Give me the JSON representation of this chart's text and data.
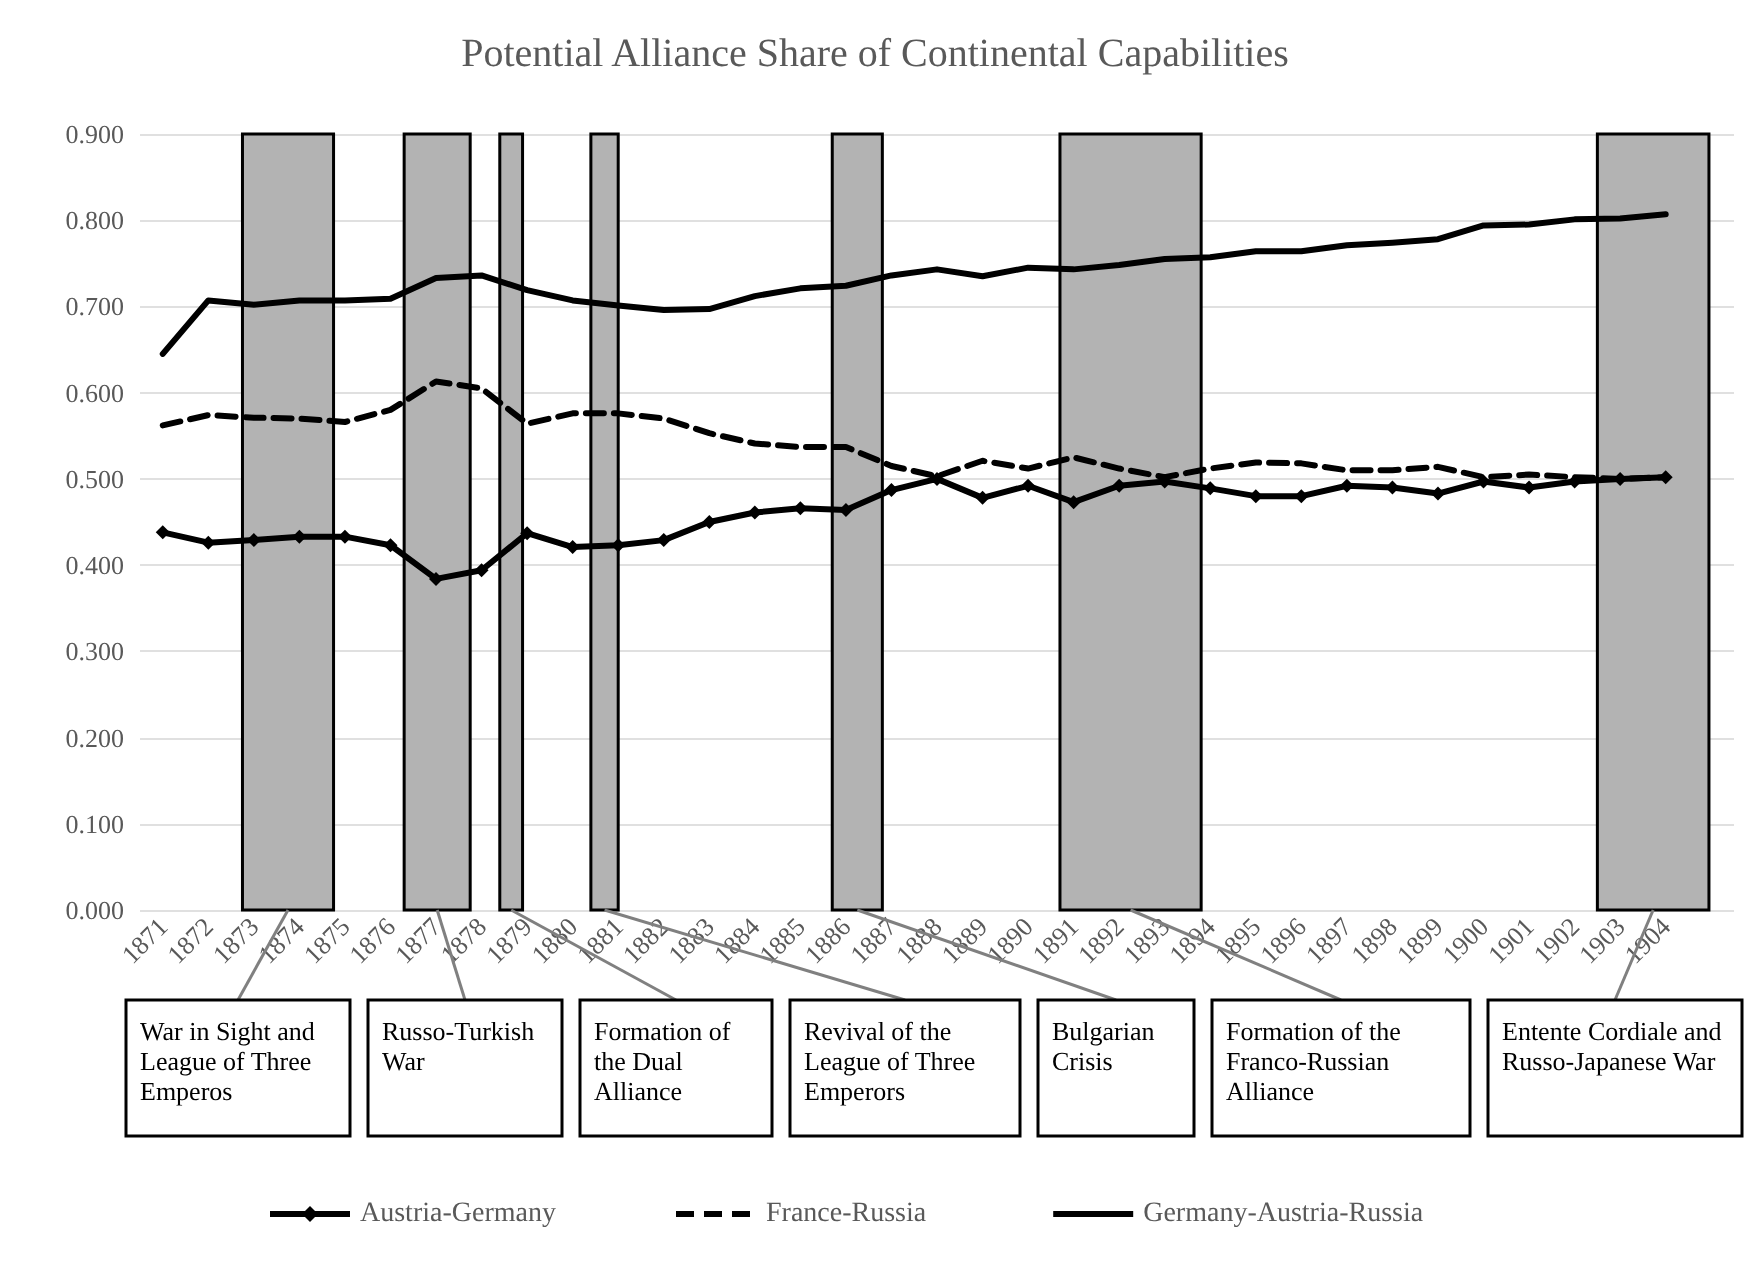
{
  "chart_data": {
    "type": "line",
    "title": "Potential Alliance Share of Continental Capabilities",
    "x": [
      1871,
      1872,
      1873,
      1874,
      1875,
      1876,
      1877,
      1878,
      1879,
      1880,
      1881,
      1882,
      1883,
      1884,
      1885,
      1886,
      1887,
      1888,
      1889,
      1890,
      1891,
      1892,
      1893,
      1894,
      1895,
      1896,
      1897,
      1898,
      1899,
      1900,
      1901,
      1902,
      1903,
      1904
    ],
    "series": [
      {
        "name": "Austria-Germany",
        "color": "#000000",
        "marker": "diamond",
        "line_style": "solid",
        "values": [
          0.438,
          0.426,
          0.429,
          0.433,
          0.433,
          0.423,
          0.384,
          0.394,
          0.437,
          0.421,
          0.423,
          0.429,
          0.45,
          0.461,
          0.466,
          0.464,
          0.487,
          0.5,
          0.478,
          0.492,
          0.473,
          0.492,
          0.497,
          0.489,
          0.48,
          0.48,
          0.492,
          0.49,
          0.483,
          0.497,
          0.49,
          0.497,
          0.5,
          0.502
        ]
      },
      {
        "name": "France-Russia",
        "color": "#000000",
        "marker": "none",
        "line_style": "dashed",
        "values": [
          0.562,
          0.574,
          0.571,
          0.57,
          0.566,
          0.58,
          0.613,
          0.605,
          0.564,
          0.576,
          0.576,
          0.57,
          0.553,
          0.541,
          0.537,
          0.537,
          0.515,
          0.503,
          0.521,
          0.512,
          0.525,
          0.512,
          0.502,
          0.512,
          0.519,
          0.518,
          0.51,
          0.51,
          0.514,
          0.502,
          0.505,
          0.502,
          0.5,
          0.502
        ]
      },
      {
        "name": "Germany-Austria-Russia",
        "color": "#000000",
        "marker": "none",
        "line_style": "solid",
        "values": [
          0.645,
          0.707,
          0.702,
          0.707,
          0.707,
          0.709,
          0.733,
          0.736,
          0.719,
          0.707,
          0.701,
          0.696,
          0.697,
          0.712,
          0.721,
          0.724,
          0.736,
          0.743,
          0.735,
          0.745,
          0.743,
          0.748,
          0.755,
          0.757,
          0.764,
          0.764,
          0.771,
          0.774,
          0.778,
          0.794,
          0.795,
          0.801,
          0.802,
          0.807
        ]
      }
    ],
    "xlim": [
      1870.5,
      1905.5
    ],
    "xticks": [
      1871,
      1872,
      1873,
      1874,
      1875,
      1876,
      1877,
      1878,
      1879,
      1880,
      1881,
      1882,
      1883,
      1884,
      1885,
      1886,
      1887,
      1888,
      1889,
      1890,
      1891,
      1892,
      1893,
      1894,
      1895,
      1896,
      1897,
      1898,
      1899,
      1900,
      1901,
      1902,
      1903,
      1904
    ],
    "ylim": [
      0,
      0.9
    ],
    "yticks": [
      {
        "value": 0,
        "label": "0.000"
      },
      {
        "value": 0.1,
        "label": "0.100"
      },
      {
        "value": 0.2,
        "label": "0.200"
      },
      {
        "value": 0.3,
        "label": "0.300"
      },
      {
        "value": 0.4,
        "label": "0.400"
      },
      {
        "value": 0.5,
        "label": "0.500"
      },
      {
        "value": 0.6,
        "label": "0.600"
      },
      {
        "value": 0.7,
        "label": "0.700"
      },
      {
        "value": 0.8,
        "label": "0.800"
      },
      {
        "value": 0.9,
        "label": "0.900"
      }
    ],
    "bands": [
      {
        "axis": "x",
        "from": 1872.75,
        "to": 1874.75,
        "label": "War in Sight and League of Three Emperos",
        "color": "#b3b3b3"
      },
      {
        "axis": "x",
        "from": 1876.3,
        "to": 1877.75,
        "label": "Russo-Turkish War",
        "color": "#b3b3b3"
      },
      {
        "axis": "x",
        "from": 1878.4,
        "to": 1878.9,
        "label": "Formation of the Dual Alliance",
        "color": "#b3b3b3"
      },
      {
        "axis": "x",
        "from": 1880.4,
        "to": 1881.0,
        "label": "Revival of the League of Three Emperors",
        "color": "#b3b3b3"
      },
      {
        "axis": "x",
        "from": 1885.7,
        "to": 1886.8,
        "label": "Bulgarian Crisis",
        "color": "#b3b3b3"
      },
      {
        "axis": "x",
        "from": 1890.7,
        "to": 1893.8,
        "label": "Formation of the Franco-Russian Alliance",
        "color": "#b3b3b3"
      },
      {
        "axis": "x",
        "from": 1902.5,
        "to": 1904.95,
        "label": "Entente Cordiale and Russo-Japanese War",
        "color": "#b3b3b3"
      }
    ],
    "grid": "y",
    "legend": "bottom"
  }
}
